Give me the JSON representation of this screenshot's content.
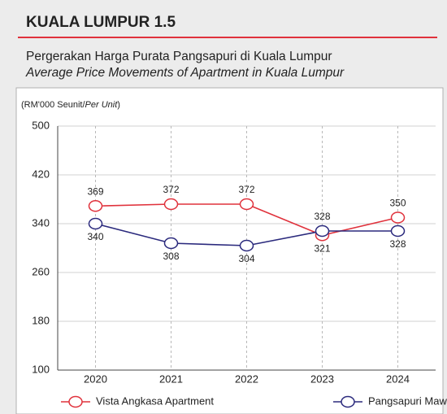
{
  "chart_data": {
    "type": "line",
    "title": "KUALA LUMPUR 1.5",
    "subtitle": "Pergerakan Harga Purata Pangsapuri di Kuala Lumpur",
    "subtitle_en": "Average Price Movements of Apartment in Kuala Lumpur",
    "unit_label": [
      "(RM'000 Seunit/",
      "Per Unit",
      ")"
    ],
    "categories": [
      "2020",
      "2021",
      "2022",
      "2023",
      "2024"
    ],
    "series": [
      {
        "name": "Vista Angkasa Apartment",
        "color": "#e0323c",
        "values": [
          369,
          372,
          372,
          321,
          350
        ]
      },
      {
        "name": "Pangsapuri Mawar",
        "color": "#2b2a7d",
        "values": [
          340,
          308,
          304,
          328,
          328
        ]
      }
    ],
    "ylim": [
      100,
      500
    ],
    "yticks": [
      100,
      180,
      260,
      340,
      420,
      500
    ],
    "grid": true
  }
}
